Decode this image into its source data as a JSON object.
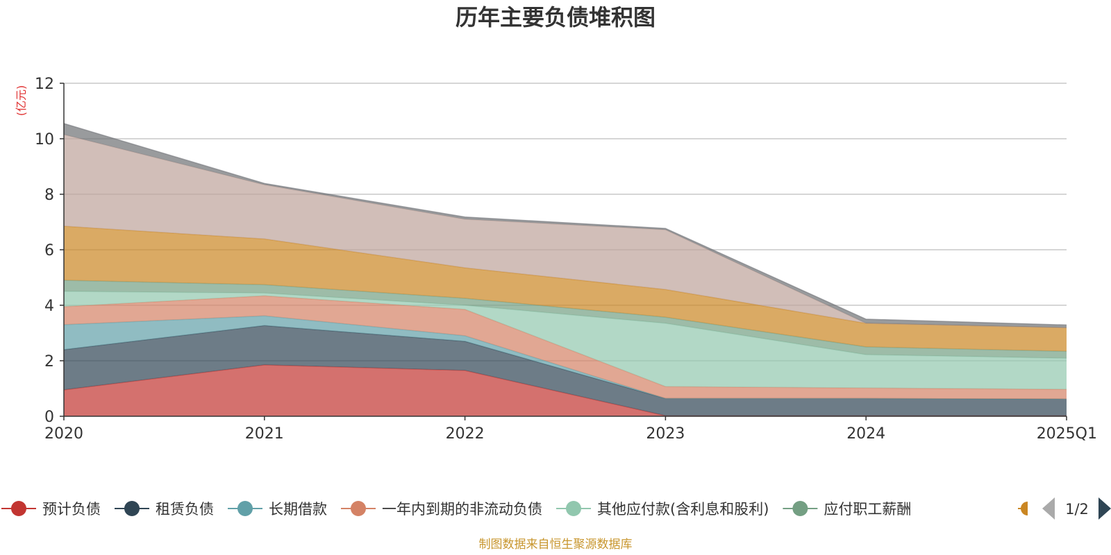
{
  "chart_data": {
    "type": "area",
    "title": "历年主要负债堆积图",
    "unit_label": "(亿元)",
    "ylim": [
      0,
      12
    ],
    "y_ticks": [
      0,
      2,
      4,
      6,
      8,
      10,
      12
    ],
    "categories": [
      "2020",
      "2021",
      "2022",
      "2023",
      "2024",
      "2025Q1"
    ],
    "stacked": true,
    "grid": true,
    "legend_position": "bottom",
    "series": [
      {
        "name": "预计负债",
        "color": "#c23531",
        "values": [
          0.95,
          1.85,
          1.65,
          0.02,
          0.02,
          0.02
        ]
      },
      {
        "name": "租赁负债",
        "color": "#2f4554",
        "values": [
          1.45,
          1.42,
          1.05,
          0.62,
          0.62,
          0.6
        ]
      },
      {
        "name": "长期借款",
        "color": "#61a0a8",
        "values": [
          0.9,
          0.35,
          0.2,
          0.0,
          0.0,
          0.0
        ]
      },
      {
        "name": "一年内到期的非流动负债",
        "color": "#d48265",
        "values": [
          0.65,
          0.72,
          0.95,
          0.43,
          0.38,
          0.35
        ]
      },
      {
        "name": "其他应付款(含利息和股利)",
        "color": "#91c7ae",
        "values": [
          0.55,
          0.1,
          0.15,
          2.28,
          1.2,
          1.12
        ]
      },
      {
        "name": "应付职工薪酬",
        "color": "#749f83",
        "values": [
          0.4,
          0.3,
          0.25,
          0.22,
          0.28,
          0.25
        ]
      },
      {
        "name": "",
        "color": "#ca8622",
        "values": [
          1.95,
          1.65,
          1.1,
          1.0,
          0.85,
          0.85
        ]
      },
      {
        "name": "",
        "color": "#bda29a",
        "values": [
          3.3,
          1.95,
          1.75,
          2.15,
          0.0,
          0.0
        ]
      },
      {
        "name": "",
        "color": "#6e7074",
        "values": [
          0.4,
          0.05,
          0.08,
          0.05,
          0.15,
          0.1
        ]
      }
    ]
  },
  "legend": {
    "page_indicator": "1/2",
    "visible_items": [
      "预计负债",
      "租赁负债",
      "长期借款",
      "一年内到期的非流动负债",
      "其他应付款(含利息和股利)",
      "应付职工薪酬"
    ],
    "partial_item_color": "#ca8622"
  },
  "footer": {
    "source": "制图数据来自恒生聚源数据库",
    "source_color": "#c8962e"
  },
  "colors": {
    "unit_label": "#e03030",
    "grid": "#c8c8c8",
    "axis": "#333333",
    "pager_active": "#2f4554",
    "pager_inactive": "#aaaaaa"
  }
}
